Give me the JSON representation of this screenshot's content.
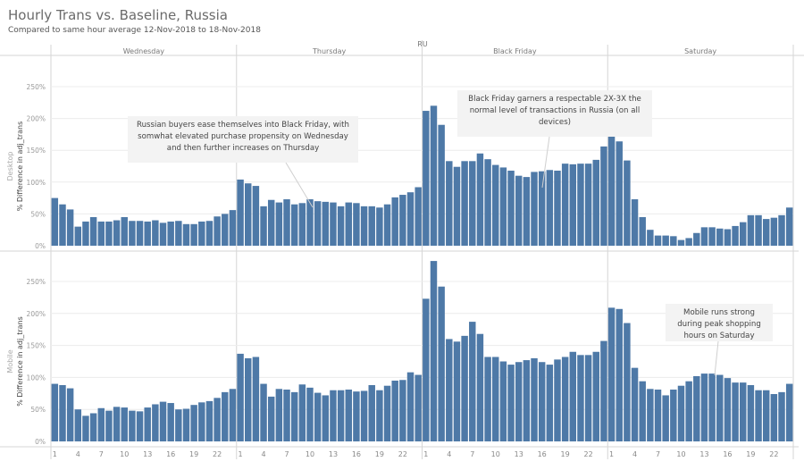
{
  "title": "Hourly Trans vs. Baseline, Russia",
  "subtitle": "Compared to same hour average 12-Nov-2018 to 18-Nov-2018",
  "chart_data": {
    "type": "bar",
    "country_header": "RU",
    "days": [
      "Wednesday",
      "Thursday",
      "Black Friday",
      "Saturday"
    ],
    "hour_ticks": [
      "1",
      "4",
      "7",
      "10",
      "13",
      "16",
      "19",
      "22"
    ],
    "ylabel": "% Difference in adj_trans",
    "yticks": [
      "0%",
      "50%",
      "100%",
      "150%",
      "200%",
      "250%"
    ],
    "ylim": [
      0,
      270
    ],
    "bar_color": "#4e79a7",
    "panels": [
      {
        "name": "Desktop",
        "values": [
          75,
          65,
          57,
          30,
          38,
          45,
          38,
          38,
          40,
          45,
          39,
          39,
          38,
          40,
          36,
          38,
          39,
          34,
          34,
          38,
          39,
          46,
          50,
          56,
          104,
          98,
          94,
          62,
          72,
          68,
          73,
          65,
          67,
          73,
          70,
          69,
          68,
          62,
          68,
          67,
          62,
          62,
          60,
          65,
          76,
          80,
          84,
          92,
          212,
          220,
          190,
          133,
          124,
          133,
          133,
          145,
          136,
          127,
          123,
          118,
          110,
          108,
          116,
          117,
          119,
          118,
          129,
          128,
          129,
          129,
          135,
          156,
          177,
          164,
          134,
          73,
          45,
          25,
          16,
          16,
          15,
          9,
          12,
          20,
          29,
          29,
          27,
          26,
          31,
          37,
          48,
          48,
          42,
          44,
          48,
          60
        ]
      },
      {
        "name": "Mobile",
        "values": [
          90,
          88,
          83,
          50,
          40,
          44,
          52,
          48,
          54,
          53,
          48,
          47,
          53,
          58,
          62,
          60,
          50,
          51,
          57,
          61,
          63,
          68,
          77,
          82,
          137,
          130,
          132,
          90,
          70,
          82,
          81,
          77,
          89,
          84,
          76,
          72,
          80,
          80,
          81,
          78,
          79,
          88,
          80,
          87,
          95,
          96,
          108,
          104,
          223,
          282,
          242,
          160,
          156,
          165,
          187,
          168,
          132,
          132,
          125,
          120,
          124,
          127,
          130,
          124,
          120,
          128,
          132,
          140,
          135,
          135,
          140,
          157,
          209,
          207,
          185,
          115,
          94,
          82,
          81,
          72,
          81,
          87,
          94,
          102,
          106,
          106,
          104,
          99,
          92,
          92,
          88,
          80,
          80,
          74,
          77,
          90
        ]
      }
    ],
    "annotations": [
      {
        "panel": "Desktop",
        "text": "Russian buyers ease themselves into Black Friday, with somwhat elevated purchase propensity on Wednesday and then further increases on Thursday"
      },
      {
        "panel": "Desktop",
        "text": "Black Friday garners a respectable 2X-3X the normal level of transactions in Russia (on all devices)"
      },
      {
        "panel": "Mobile",
        "text": "Mobile runs strong during peak shopping hours on Saturday"
      }
    ]
  }
}
